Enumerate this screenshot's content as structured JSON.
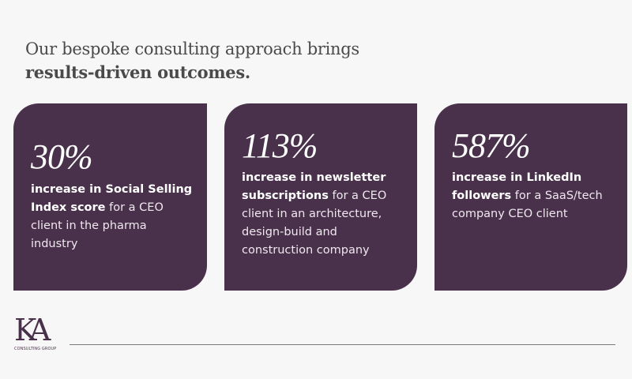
{
  "headline": {
    "line1": "Our bespoke consulting approach brings",
    "line2": "results-driven outcomes."
  },
  "cards": [
    {
      "stat": "30%",
      "bold": "increase in Social Selling Index score",
      "rest": " for a CEO client in the pharma industry"
    },
    {
      "stat": "113%",
      "bold": "increase in newsletter subscriptions",
      "rest": " for a CEO client in an architecture, design-build and construction company"
    },
    {
      "stat": "587%",
      "bold": "increase in LinkedIn followers",
      "rest": " for a SaaS/tech company CEO client"
    }
  ],
  "logo": {
    "mark": "KA",
    "subtitle": "CONSULTING GROUP"
  },
  "colors": {
    "card": "#4a314b",
    "background": "#f7f7f7",
    "headline": "#4a4a4a"
  }
}
